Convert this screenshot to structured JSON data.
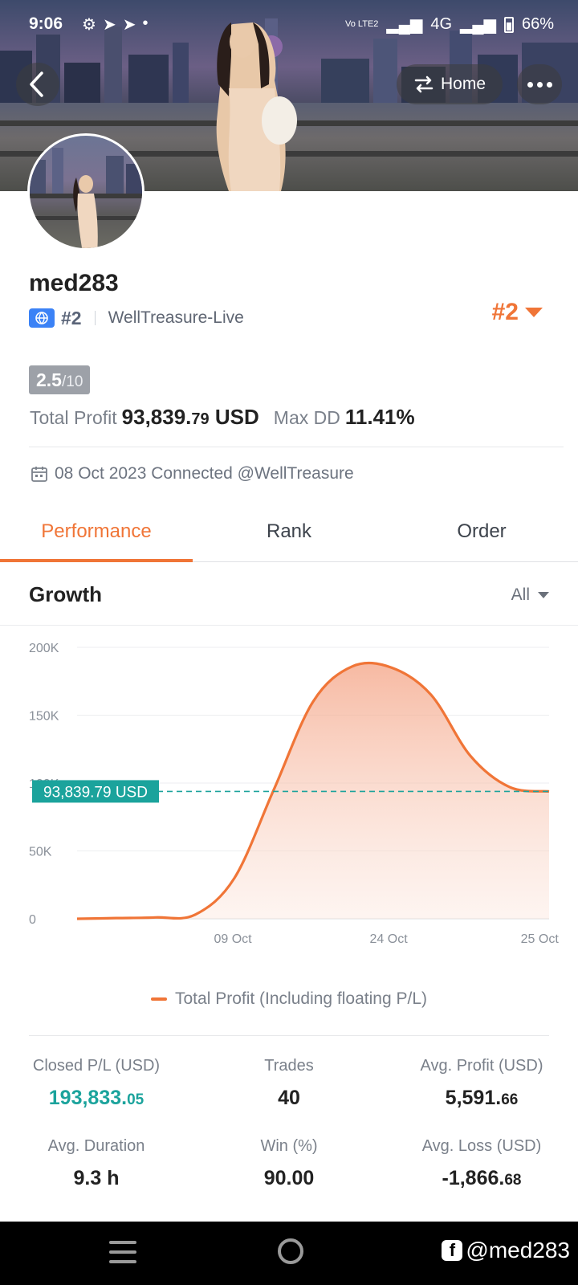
{
  "status_bar": {
    "time": "9:06",
    "battery": "66%",
    "network": "4G",
    "volte": "Vo LTE2"
  },
  "header": {
    "home_label": "Home"
  },
  "profile": {
    "username": "med283",
    "rank": "#2",
    "broker": "WellTreasure-Live",
    "rank_badge": "#2",
    "score": "2.5",
    "score_max": "/10",
    "total_profit_label": "Total Profit",
    "total_profit_main": "93,839.",
    "total_profit_cents": "79",
    "total_profit_unit": "USD",
    "max_dd_label": "Max DD",
    "max_dd": "11.41%",
    "connected": "08 Oct 2023 Connected @WellTreasure"
  },
  "tabs": [
    {
      "label": "Performance",
      "active": true
    },
    {
      "label": "Rank",
      "active": false
    },
    {
      "label": "Order",
      "active": false
    }
  ],
  "growth": {
    "title": "Growth",
    "range": "All"
  },
  "chart_data": {
    "type": "area",
    "y_ticks": [
      "200K",
      "150K",
      "100K",
      "50K",
      "0"
    ],
    "x_ticks": [
      "09 Oct",
      "24 Oct",
      "25 Oct"
    ],
    "ylim": [
      0,
      200000
    ],
    "series": [
      {
        "name": "Total Profit (Including floating P/L)",
        "color": "#f07537",
        "values": [
          0,
          500,
          1000,
          3000,
          30000,
          95000,
          160000,
          186000,
          185000,
          165000,
          120000,
          97000,
          93839.79
        ]
      }
    ],
    "current_value": 93839.79,
    "current_label": "93,839.79 USD",
    "legend": "Total Profit (Including floating P/L)"
  },
  "stats": {
    "closed_pl_label": "Closed P/L (USD)",
    "closed_pl_main": "193,833.",
    "closed_pl_cents": "05",
    "trades_label": "Trades",
    "trades": "40",
    "avg_profit_label": "Avg. Profit (USD)",
    "avg_profit_main": "5,591.",
    "avg_profit_cents": "66",
    "avg_duration_label": "Avg. Duration",
    "avg_duration": "9.3 h",
    "win_label": "Win (%)",
    "win": "90.00",
    "avg_loss_label": "Avg. Loss (USD)",
    "avg_loss_main": "-1,866.",
    "avg_loss_cents": "68"
  },
  "watermark": "@med283"
}
